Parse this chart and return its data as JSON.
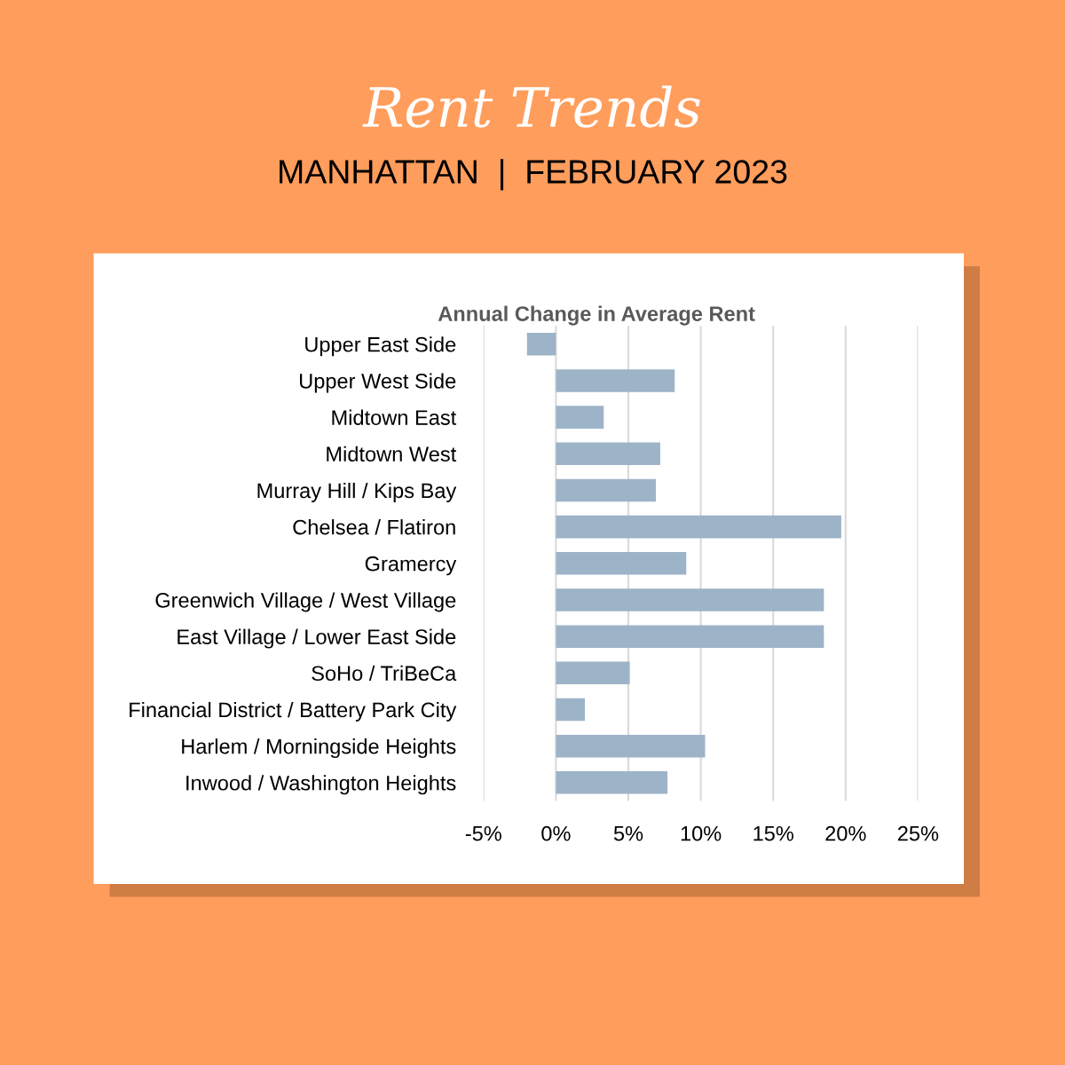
{
  "chart_data": {
    "type": "bar",
    "orientation": "horizontal",
    "title": "Rent Trends",
    "subtitle": "MANHATTAN  |  FEBRUARY 2023",
    "annotations": [
      "Annual Change in Average Rent"
    ],
    "categories": [
      "Upper East Side",
      "Upper West Side",
      "Midtown East",
      "Midtown West",
      "Murray Hill / Kips Bay",
      "Chelsea / Flatiron",
      "Gramercy",
      "Greenwich Village / West Village",
      "East Village / Lower East Side",
      "SoHo / TriBeCa",
      "Financial District / Battery Park City",
      "Harlem / Morningside Heights",
      "Inwood / Washington Heights"
    ],
    "values": [
      -2.0,
      8.2,
      3.3,
      7.2,
      6.9,
      19.7,
      9.0,
      18.5,
      18.5,
      5.1,
      2.0,
      10.3,
      7.7
    ],
    "color": "#9db3c8",
    "xlim": [
      -5,
      25
    ],
    "xticks": [
      {
        "value": -5,
        "label": "-5%"
      },
      {
        "value": 0,
        "label": "0%"
      },
      {
        "value": 5,
        "label": "5%"
      },
      {
        "value": 10,
        "label": "10%"
      },
      {
        "value": 15,
        "label": "15%"
      },
      {
        "value": 20,
        "label": "20%"
      },
      {
        "value": 25,
        "label": "25%"
      }
    ],
    "grid": "x"
  }
}
